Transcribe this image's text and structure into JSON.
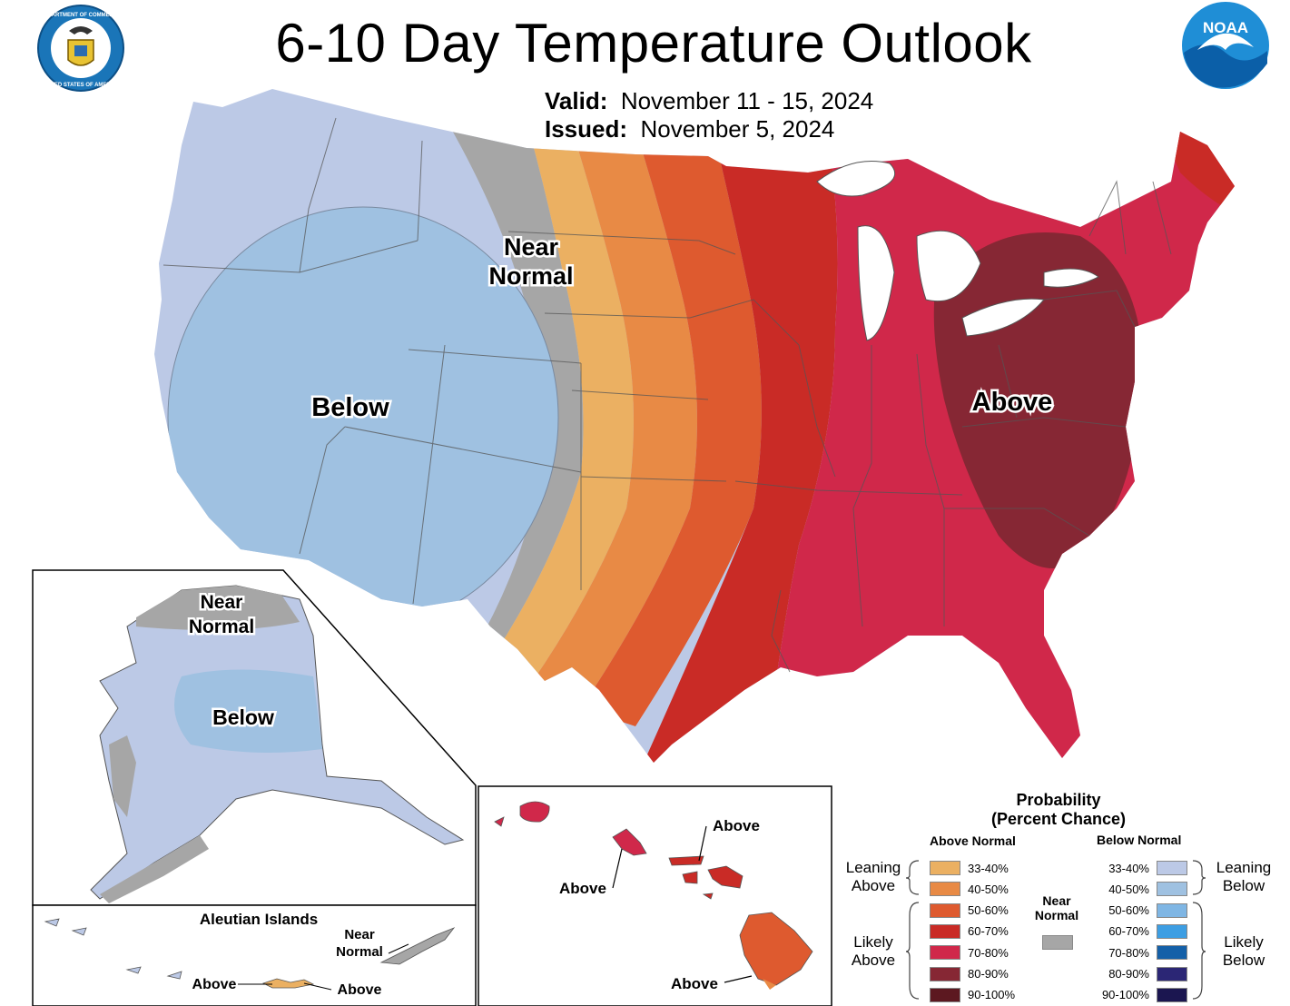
{
  "header": {
    "title": "6-10 Day Temperature Outlook",
    "valid_label": "Valid:",
    "valid_value": "November 11 - 15, 2024",
    "issued_label": "Issued:",
    "issued_value": "November 5, 2024"
  },
  "logos": {
    "doc_seal": "department-of-commerce-seal",
    "doc_seal_text": "DEPARTMENT OF COMMERCE · UNITED STATES OF AMERICA",
    "noaa_logo": "noaa-logo",
    "noaa_text": "NOAA"
  },
  "map": {
    "main_labels": {
      "near": "Near",
      "normal": "Normal",
      "below": "Below",
      "above": "Above"
    },
    "alaska_labels": {
      "near": "Near",
      "normal": "Normal",
      "below": "Below"
    },
    "aleutian": {
      "title": "Aleutian Islands",
      "near": "Near",
      "normal": "Normal",
      "above_west": "Above",
      "above_east": "Above"
    },
    "hawaii": {
      "above_top": "Above",
      "above_left": "Above",
      "above_bottom": "Above"
    }
  },
  "legend": {
    "title_line1": "Probability",
    "title_line2": "(Percent Chance)",
    "above_header": "Above Normal",
    "below_header": "Below Normal",
    "near_line1": "Near",
    "near_line2": "Normal",
    "near_color": "#a6a6a6",
    "above_classes": [
      {
        "range": "33-40%",
        "color": "#ebb062"
      },
      {
        "range": "40-50%",
        "color": "#e88a45"
      },
      {
        "range": "50-60%",
        "color": "#de5a2f"
      },
      {
        "range": "60-70%",
        "color": "#c92b26"
      },
      {
        "range": "70-80%",
        "color": "#d0284a"
      },
      {
        "range": "80-90%",
        "color": "#862734"
      },
      {
        "range": "90-100%",
        "color": "#5c1820"
      }
    ],
    "below_classes": [
      {
        "range": "33-40%",
        "color": "#bcc9e6"
      },
      {
        "range": "40-50%",
        "color": "#9fc1e1"
      },
      {
        "range": "50-60%",
        "color": "#7fb6e4"
      },
      {
        "range": "60-70%",
        "color": "#3d9ee3"
      },
      {
        "range": "70-80%",
        "color": "#1460a8"
      },
      {
        "range": "80-90%",
        "color": "#2b2675"
      },
      {
        "range": "90-100%",
        "color": "#1b1650"
      }
    ],
    "groups": {
      "leaning_above": [
        "Leaning",
        "Above"
      ],
      "likely_above": [
        "Likely",
        "Above"
      ],
      "leaning_below": [
        "Leaning",
        "Below"
      ],
      "likely_below": [
        "Likely",
        "Below"
      ]
    }
  }
}
